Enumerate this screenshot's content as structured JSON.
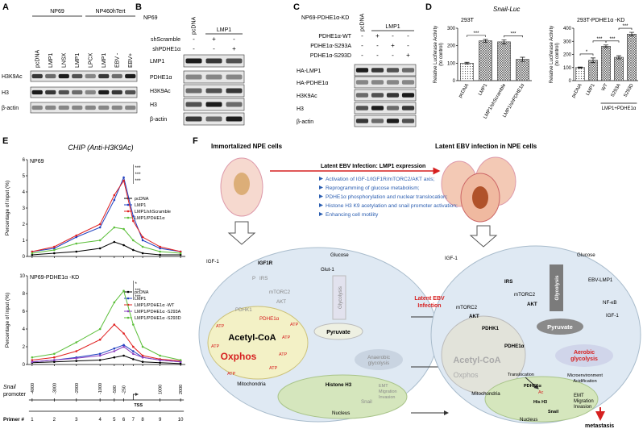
{
  "panels": {
    "a": {
      "label": "A",
      "groups": [
        {
          "name": "NP69",
          "lanes": [
            "pcDNA",
            "LMP1",
            "LNSX",
            "LMP1"
          ]
        },
        {
          "name": "NP460hTert",
          "lanes": [
            "LPCX",
            "LMP1",
            "EBV -",
            "EBV+"
          ]
        }
      ],
      "blots": [
        "H3K9Ac",
        "H3",
        "β-actin"
      ]
    },
    "b": {
      "label": "B",
      "cell": "NP69",
      "lanes": [
        "pcDNA",
        "LMP1"
      ],
      "conditions": [
        {
          "name": "shScramble",
          "signs": [
            "-",
            "+",
            "-"
          ]
        },
        {
          "name": "shPDHE1α",
          "signs": [
            "-",
            "-",
            "+"
          ]
        }
      ],
      "blots": [
        "LMP1",
        "PDHE1α",
        "H3K9Ac",
        "H3",
        "β-actin"
      ]
    },
    "c": {
      "label": "C",
      "cell": "NP69-PDHE1α-KD",
      "lanes": [
        "pcDNA",
        "LMP1"
      ],
      "conditions": [
        {
          "name": "PDHE1α-WT",
          "signs": [
            "-",
            "+",
            "-",
            "-"
          ]
        },
        {
          "name": "PDHE1α-S293A",
          "signs": [
            "-",
            "-",
            "+",
            "-"
          ]
        },
        {
          "name": "PDHE1α-S293D",
          "signs": [
            "-",
            "-",
            "-",
            "+"
          ]
        }
      ],
      "blots": [
        "HA-LMP1",
        "HA-PDHE1α",
        "H3K9Ac",
        "H3",
        "β-actin"
      ]
    },
    "d": {
      "label": "D",
      "title": "Snail-Luc"
    },
    "e": {
      "label": "E",
      "title": "CHIP (Anti-H3K9Ac)",
      "promoter_label": [
        "Snail",
        "promoter"
      ],
      "positions": [
        "-4000",
        "-3000",
        "-2000",
        "-1000",
        "-500",
        "-250",
        "1000",
        "2000"
      ],
      "tss": "TSS",
      "primer_label": "Primer #"
    },
    "f": {
      "label": "F",
      "left_title": "Immortalized NPE cells",
      "right_title": "Latent EBV infection in NPE cells",
      "box_title": "Latent EBV Infection: LMP1 expression",
      "bullets": [
        "Activation of IGF-1/IGF1R/mTORC2/AKT axis;",
        "Reprogramming of glucose metabolism;",
        "PDHE1α phosphorylation and nuclear translocation;",
        "Histone H3 K9 acetylation and snail promoter activation;",
        "Enhancing cell motility"
      ],
      "arrow_label": [
        "Latent EBV",
        "Infection"
      ],
      "left": {
        "igf": "IGF-1",
        "igf1r": "IGF1R",
        "p": "P",
        "irs": "IRS",
        "mtorc2": "mTORC2",
        "akt": "AKT",
        "glucose": "Glucose",
        "glut": "Glut-1",
        "glycolysis": "Glycolysis",
        "pyruvate": "Pyruvate",
        "pdhk1": "PDHK1",
        "pdhe1a": "PDHE1α",
        "acetyl": "Acetyl-CoA",
        "oxphos": "Oxphos",
        "atp": "ATP",
        "anaerobic": [
          "Anaerobic",
          "glycolysis"
        ],
        "mito": "Mitochondria",
        "histone": "Histone H3",
        "snail": "Snail",
        "emt": [
          "EMT",
          "Migration",
          "Invasion"
        ],
        "nucleus": "Nucleus"
      },
      "right": {
        "igf": "IGF-1",
        "irs": "IRS",
        "mtorc2": "mTORC2",
        "akt": "AKT",
        "pdhk1": "PDHK1",
        "pdhe1a": "PDHE1α",
        "acetyl": "Acetyl-CoA",
        "oxphos": "Oxphos",
        "mito": "Mitochondria",
        "glycolysis": "Glycolysis",
        "glucose": "Glucose",
        "ebv": "EBV-LMP1",
        "nfkb": "NF-κB",
        "pyruvate": "Pyruvate",
        "aerobic": [
          "Aerobic",
          "glycolysis"
        ],
        "microenv": [
          "Microenvironment",
          "Acidification"
        ],
        "translocation": "Translocation",
        "ac": "Ac",
        "hish3": "His H3",
        "snail": "Snail",
        "emt": [
          "EMT",
          "Migration",
          "Invasion"
        ],
        "nucleus": "Nucleus",
        "metastasis": "metastasis"
      }
    }
  },
  "chart_data": [
    {
      "type": "bar",
      "subtitle": "293T",
      "ylabel": [
        "Relative Luciferase Activity",
        "(to control)"
      ],
      "categories": [
        "pcDNA",
        "LMP1",
        "LMP1/shScramble",
        "LMP1/shPDHE1α"
      ],
      "values": [
        100,
        228,
        222,
        122
      ],
      "errors": [
        5,
        8,
        12,
        12
      ],
      "ylim": [
        0,
        300
      ],
      "yticks": [
        0,
        100,
        200,
        300
      ],
      "significance": [
        {
          "label": "***",
          "between": [
            "pcDNA",
            "LMP1"
          ]
        },
        {
          "label": "***",
          "between": [
            "LMP1/shScramble",
            "LMP1/shPDHE1α"
          ]
        }
      ]
    },
    {
      "type": "bar",
      "subtitle": "293T-PDHE1α -KD",
      "ylabel": [
        "Relative Luciferase Activity",
        "(to control)"
      ],
      "categories": [
        "pcDNA",
        "LMP1",
        "WT",
        "S293A",
        "S293D"
      ],
      "values": [
        100,
        155,
        262,
        178,
        355
      ],
      "errors": [
        4,
        18,
        10,
        12,
        14
      ],
      "ylim": [
        0,
        400
      ],
      "yticks": [
        0,
        100,
        200,
        300,
        400
      ],
      "group_label": {
        "label": "LMP1+PDHE1α",
        "categories": [
          "WT",
          "S293A",
          "S293D"
        ]
      },
      "significance": [
        {
          "label": "*",
          "between": [
            "pcDNA",
            "LMP1"
          ]
        },
        {
          "label": "***",
          "between": [
            "LMP1",
            "WT"
          ]
        },
        {
          "label": "***",
          "between": [
            "WT",
            "S293A"
          ]
        },
        {
          "label": "***",
          "between": [
            "S293A",
            "S293D"
          ]
        }
      ]
    },
    {
      "type": "line",
      "subtitle": "NP69",
      "ylabel": "Percentage of input (%)",
      "categories": [
        1,
        2,
        3,
        4,
        5,
        6,
        7,
        8,
        9,
        10
      ],
      "ylim": [
        0,
        6
      ],
      "yticks": [
        0,
        1,
        2,
        3,
        4,
        5,
        6
      ],
      "annotations": [
        "***",
        "***",
        "***"
      ],
      "series": [
        {
          "name": "pcDNA",
          "color": "#000000",
          "values": [
            0.1,
            0.2,
            0.3,
            0.5,
            0.9,
            0.7,
            0.4,
            0.2,
            0.1,
            0.1
          ]
        },
        {
          "name": "LMP1",
          "color": "#2040c0",
          "values": [
            0.3,
            0.5,
            1.2,
            1.8,
            3.5,
            4.9,
            2.5,
            1.0,
            0.5,
            0.3
          ]
        },
        {
          "name": "LMP1/shScramble",
          "color": "#e02020",
          "values": [
            0.3,
            0.6,
            1.3,
            2.0,
            3.8,
            4.7,
            2.2,
            1.2,
            0.6,
            0.3
          ]
        },
        {
          "name": "LMP1/PDHE1α",
          "color": "#5cbf3a",
          "values": [
            0.2,
            0.4,
            0.8,
            1.0,
            1.8,
            1.7,
            1.0,
            0.6,
            0.3,
            0.2
          ]
        }
      ]
    },
    {
      "type": "line",
      "subtitle": "NP69-PDHE1α -KD",
      "ylabel": "Percentage of input (%)",
      "categories": [
        1,
        2,
        3,
        4,
        5,
        6,
        7,
        8,
        9,
        10
      ],
      "ylim": [
        0,
        10
      ],
      "yticks": [
        0,
        2,
        4,
        6,
        8,
        10
      ],
      "annotations": [
        "*",
        "***",
        "***"
      ],
      "series": [
        {
          "name": "pcDNA",
          "color": "#000000",
          "values": [
            0.2,
            0.3,
            0.4,
            0.5,
            0.8,
            1.0,
            0.6,
            0.3,
            0.2,
            0.1
          ]
        },
        {
          "name": "LMP1",
          "color": "#2040c0",
          "values": [
            0.3,
            0.5,
            0.8,
            1.2,
            1.8,
            2.2,
            1.5,
            0.8,
            0.5,
            0.3
          ]
        },
        {
          "name": "LMP1/PDHE1α -WT",
          "color": "#e02020",
          "values": [
            0.5,
            0.8,
            1.5,
            2.8,
            4.5,
            3.5,
            2.0,
            1.0,
            0.6,
            0.4
          ]
        },
        {
          "name": "LMP1/PDHE1α -S293A",
          "color": "#8b3fbf",
          "values": [
            0.3,
            0.5,
            0.7,
            1.0,
            1.5,
            2.0,
            1.2,
            0.8,
            0.5,
            0.3
          ]
        },
        {
          "name": "LMP1/PDHE1α -S293D",
          "color": "#5cbf3a",
          "values": [
            0.8,
            1.2,
            2.5,
            4.0,
            7.0,
            8.3,
            4.5,
            2.0,
            1.0,
            0.5
          ]
        }
      ]
    }
  ]
}
